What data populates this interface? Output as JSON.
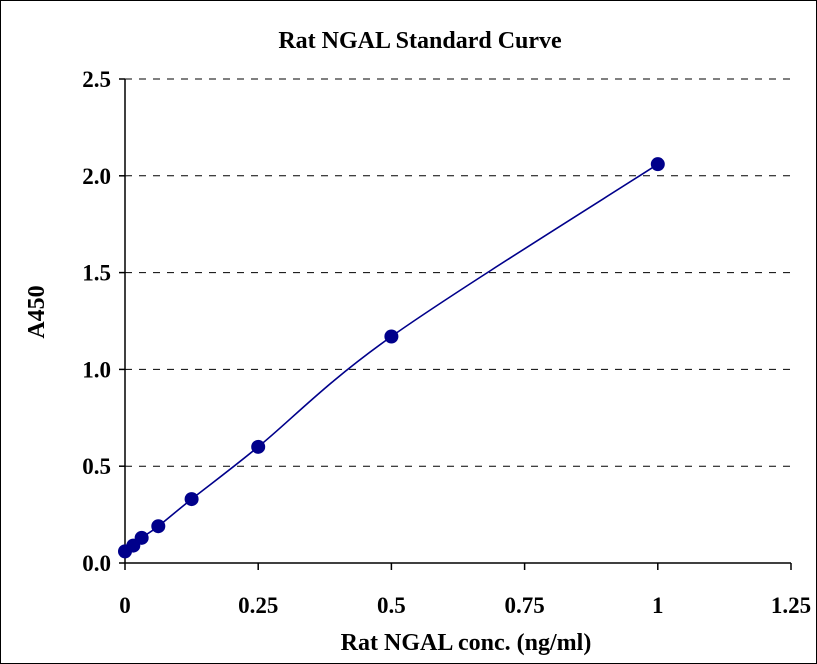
{
  "chart_data": {
    "type": "scatter",
    "title": "Rat NGAL Standard Curve",
    "xlabel": "Rat NGAL conc. (ng/ml)",
    "ylabel": "A450",
    "xlim": [
      0,
      1.25
    ],
    "ylim": [
      0,
      2.5
    ],
    "x_ticks": [
      "0",
      "0.25",
      "0.5",
      "0.75",
      "1",
      "1.25"
    ],
    "y_ticks": [
      "0.0",
      "0.5",
      "1.0",
      "1.5",
      "2.0",
      "2.5"
    ],
    "grid": "horizontal dashed",
    "legend": "none",
    "series": [
      {
        "points": [
          {
            "x": 0,
            "y": 0.06
          },
          {
            "x": 0.0156,
            "y": 0.09
          },
          {
            "x": 0.03125,
            "y": 0.13
          },
          {
            "x": 0.0625,
            "y": 0.19
          },
          {
            "x": 0.125,
            "y": 0.33
          },
          {
            "x": 0.25,
            "y": 0.6
          },
          {
            "x": 0.5,
            "y": 1.17
          },
          {
            "x": 1,
            "y": 2.06
          }
        ],
        "line": "smoothed",
        "color": "#00008B"
      }
    ]
  }
}
